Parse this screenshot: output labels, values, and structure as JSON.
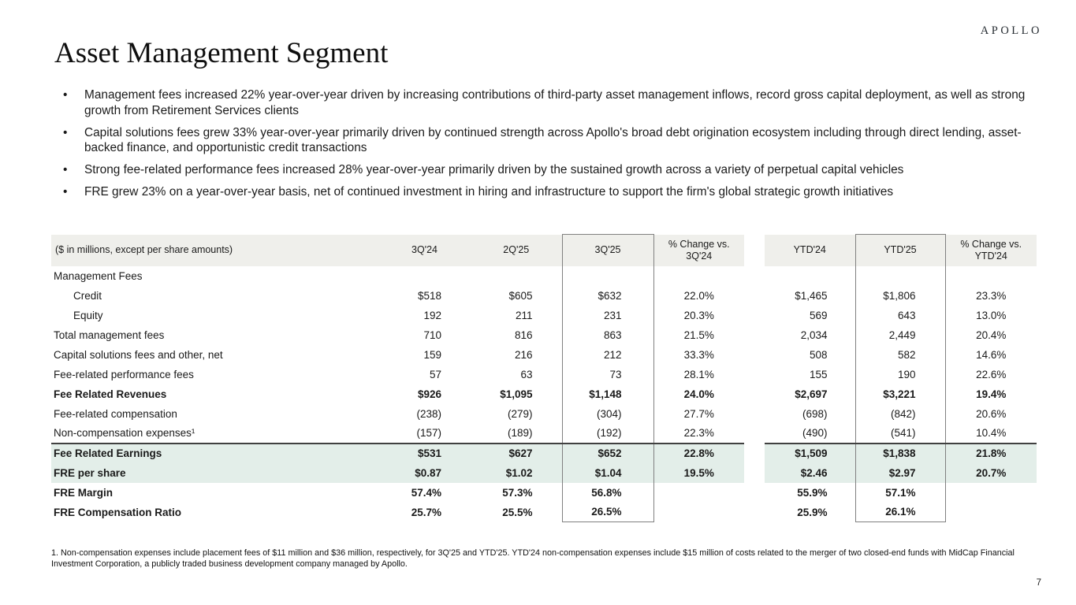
{
  "logo_text": "APOLLO",
  "title": "Asset Management Segment",
  "bullets": [
    "Management fees increased 22% year-over-year driven by increasing contributions of third-party asset management inflows, record gross capital deployment, as well as strong growth from Retirement Services clients",
    "Capital solutions fees grew 33% year-over-year primarily driven by continued strength across Apollo's broad debt origination ecosystem including through direct lending, asset-backed finance, and opportunistic credit transactions",
    "Strong fee-related performance fees increased 28% year-over-year primarily driven by the sustained growth across a variety of perpetual capital vehicles",
    "FRE grew 23% on a year-over-year basis, net of continued investment in hiring and infrastructure to support the firm's global strategic growth initiatives"
  ],
  "table": {
    "header": {
      "label": "($ in millions, except per share amounts)",
      "columns": [
        "3Q'24",
        "2Q'25",
        "3Q'25",
        "% Change vs. 3Q'24",
        "YTD'24",
        "YTD'25",
        "% Change vs. YTD'24"
      ]
    },
    "rows": [
      {
        "label": "Management Fees",
        "style": "section",
        "values": [
          "",
          "",
          "",
          "",
          "",
          "",
          ""
        ]
      },
      {
        "label": "Credit",
        "style": "indent",
        "values": [
          "$518",
          "$605",
          "$632",
          "22.0%",
          "$1,465",
          "$1,806",
          "23.3%"
        ]
      },
      {
        "label": "Equity",
        "style": "indent",
        "values": [
          "192",
          "211",
          "231",
          "20.3%",
          "569",
          "643",
          "13.0%"
        ]
      },
      {
        "label": "Total management fees",
        "style": "",
        "values": [
          "710",
          "816",
          "863",
          "21.5%",
          "2,034",
          "2,449",
          "20.4%"
        ]
      },
      {
        "label": "Capital solutions fees and other, net",
        "style": "",
        "values": [
          "159",
          "216",
          "212",
          "33.3%",
          "508",
          "582",
          "14.6%"
        ]
      },
      {
        "label": "Fee-related performance fees",
        "style": "",
        "values": [
          "57",
          "63",
          "73",
          "28.1%",
          "155",
          "190",
          "22.6%"
        ]
      },
      {
        "label": "Fee Related Revenues",
        "style": "bold",
        "values": [
          "$926",
          "$1,095",
          "$1,148",
          "24.0%",
          "$2,697",
          "$3,221",
          "19.4%"
        ]
      },
      {
        "label": "Fee-related compensation",
        "style": "",
        "values": [
          "(238)",
          "(279)",
          "(304)",
          "27.7%",
          "(698)",
          "(842)",
          "20.6%"
        ]
      },
      {
        "label": "Non-compensation expenses¹",
        "style": "",
        "values": [
          "(157)",
          "(189)",
          "(192)",
          "22.3%",
          "(490)",
          "(541)",
          "10.4%"
        ]
      },
      {
        "label": "Fee Related Earnings",
        "style": "bold highlight topline",
        "values": [
          "$531",
          "$627",
          "$652",
          "22.8%",
          "$1,509",
          "$1,838",
          "21.8%"
        ]
      },
      {
        "label": "FRE per share",
        "style": "bold highlight",
        "values": [
          "$0.87",
          "$1.02",
          "$1.04",
          "19.5%",
          "$2.46",
          "$2.97",
          "20.7%"
        ]
      },
      {
        "label": "FRE Margin",
        "style": "bold",
        "values": [
          "57.4%",
          "57.3%",
          "56.8%",
          "",
          "55.9%",
          "57.1%",
          ""
        ]
      },
      {
        "label": "FRE Compensation Ratio",
        "style": "bold",
        "values": [
          "25.7%",
          "25.5%",
          "26.5%",
          "",
          "25.9%",
          "26.1%",
          ""
        ]
      }
    ]
  },
  "footnote": "1. Non-compensation expenses include placement fees of $11 million and $36 million, respectively, for 3Q'25 and YTD'25. YTD'24 non-compensation expenses include $15 million of costs related to the merger of two closed-end funds with MidCap Financial Investment Corporation, a publicly traded business development company managed by Apollo.",
  "page_number": "7",
  "colors": {
    "header_row_bg": "#efefeb",
    "highlight_row_bg": "#e3eee9",
    "box_border": "#808080",
    "heavy_rule": "#404040",
    "text": "#1a1a1a"
  }
}
